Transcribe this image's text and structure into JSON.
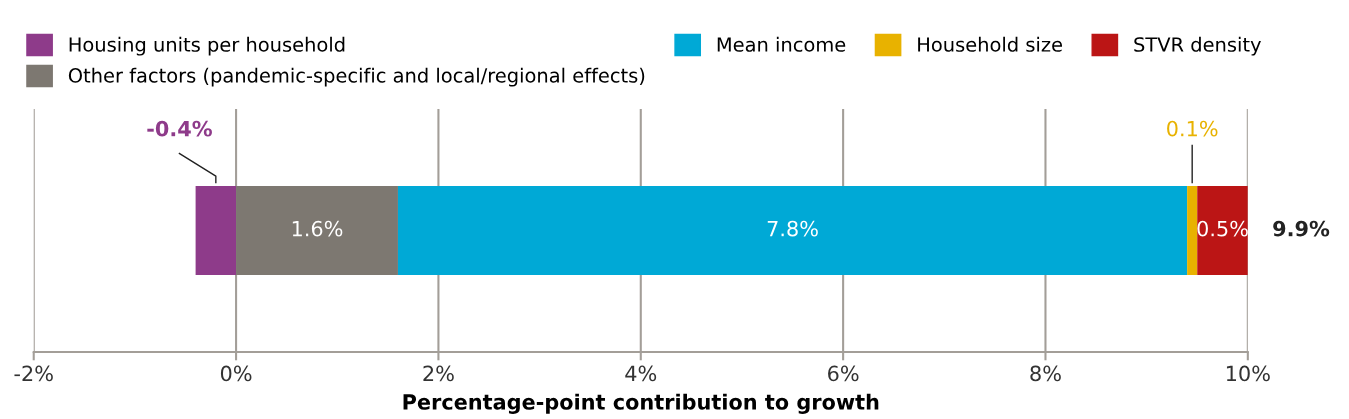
{
  "chart_data": {
    "type": "bar",
    "orientation": "horizontal",
    "stacked": true,
    "xlabel": "Percentage-point contribution to growth",
    "categories": [
      null
    ],
    "series": [
      {
        "name": "Housing units per household",
        "color": "#8e3b8a",
        "values": [
          -0.4
        ],
        "value_labels": [
          "-0.4%"
        ]
      },
      {
        "name": "Other factors (pandemic-specific and local/regional effects)",
        "color": "#7d7871",
        "values": [
          1.6
        ],
        "value_labels": [
          "1.6%"
        ]
      },
      {
        "name": "Mean income",
        "color": "#00a9d6",
        "values": [
          7.8
        ],
        "value_labels": [
          "7.8%"
        ]
      },
      {
        "name": "Household size",
        "color": "#e8b200",
        "values": [
          0.1
        ],
        "value_labels": [
          "0.1%"
        ]
      },
      {
        "name": "STVR density",
        "color": "#bb1515",
        "values": [
          0.5
        ],
        "value_labels": [
          "0.5%"
        ]
      }
    ],
    "annotations": [
      "9.9%"
    ],
    "xlim": [
      -2,
      10
    ],
    "xticks": [
      {
        "value": -2,
        "label": "-2%"
      },
      {
        "value": 0,
        "label": "0%"
      },
      {
        "value": 2,
        "label": "2%"
      },
      {
        "value": 4,
        "label": "4%"
      },
      {
        "value": 6,
        "label": "6%"
      },
      {
        "value": 8,
        "label": "8%"
      },
      {
        "value": 10,
        "label": "10%"
      }
    ],
    "grid": "x",
    "legend": "top"
  }
}
